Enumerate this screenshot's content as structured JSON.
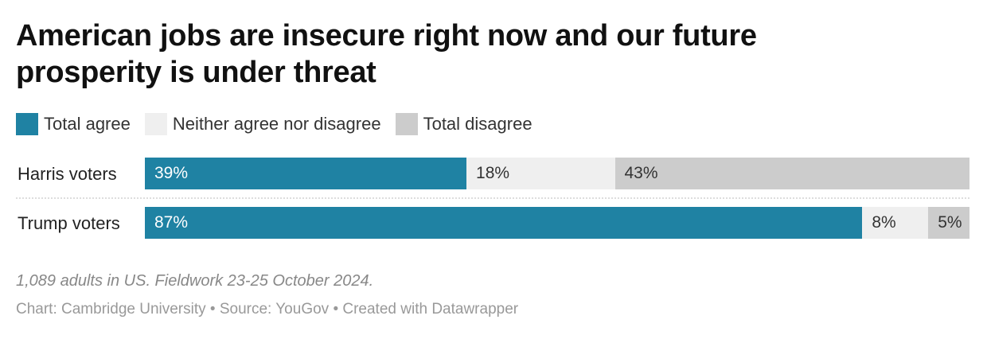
{
  "chart_data": {
    "type": "bar",
    "stacked": true,
    "orientation": "horizontal",
    "title": "American jobs are insecure right now and our future prosperity is under threat",
    "categories": [
      "Harris voters",
      "Trump voters"
    ],
    "series": [
      {
        "name": "Total agree",
        "color": "#1f82a3",
        "text_color": "#ffffff",
        "values": [
          39,
          87
        ],
        "labels": [
          "39%",
          "87%"
        ]
      },
      {
        "name": "Neither agree nor disagree",
        "color": "#efefef",
        "text_color": "#333333",
        "values": [
          18,
          8
        ],
        "labels": [
          "18%",
          "8%"
        ]
      },
      {
        "name": "Total disagree",
        "color": "#cccccc",
        "text_color": "#333333",
        "values": [
          43,
          5
        ],
        "labels": [
          "43%",
          "5%"
        ]
      }
    ],
    "xlim": [
      0,
      100
    ],
    "legend": "top-left",
    "note": "1,089 adults in US. Fieldwork 23-25 October 2024.",
    "source": "Chart: Cambridge University • Source: YouGov • Created with Datawrapper"
  }
}
